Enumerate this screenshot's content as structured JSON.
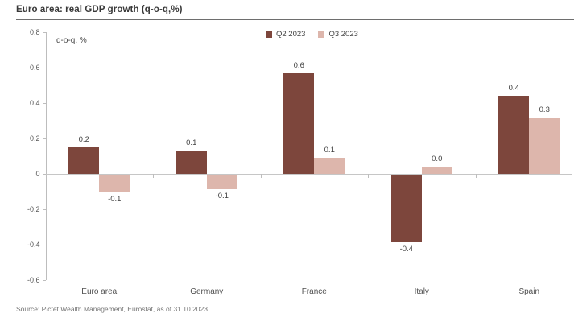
{
  "title": "Euro area: real GDP growth (q-o-q,%)",
  "source": "Source: Pictet Wealth Management, Eurostat, as of 31.10.2023",
  "colors": {
    "q2_series": "#7d463c",
    "q3_series": "#ddb6ac",
    "axis_line": "#bdbdbd",
    "title_rule": "#6e6e6e"
  },
  "chart_data": {
    "type": "bar",
    "title": "Euro area: real GDP growth (q-o-q,%)",
    "axis_note": "q-o-q, %",
    "xlabel": "",
    "ylabel": "q-o-q, %",
    "categories": [
      "Euro area",
      "Germany",
      "France",
      "Italy",
      "Spain"
    ],
    "series": [
      {
        "name": "Q2 2023",
        "color": "#7d463c",
        "values": [
          0.2,
          0.1,
          0.6,
          -0.4,
          0.4
        ],
        "labels": [
          "0.2",
          "0.1",
          "0.6",
          "-0.4",
          "0.4"
        ],
        "plotted": [
          0.15,
          0.13,
          0.57,
          -0.38,
          0.44
        ]
      },
      {
        "name": "Q3 2023",
        "color": "#ddb6ac",
        "values": [
          -0.1,
          -0.1,
          0.1,
          0.0,
          0.3
        ],
        "labels": [
          "-0.1",
          "-0.1",
          "0.1",
          "0.0",
          "0.3"
        ],
        "plotted": [
          -0.1,
          -0.08,
          0.09,
          0.04,
          0.32
        ]
      }
    ],
    "ylim": [
      -0.6,
      0.8
    ],
    "y_ticks": [
      0.8,
      0.6,
      0.4,
      0.2,
      0,
      -0.2,
      -0.4,
      -0.6
    ],
    "y_tick_labels": [
      "0.8",
      "0.6",
      "0.4",
      "0.2",
      "0",
      "-0.2",
      "-0.4",
      "-0.6"
    ],
    "grid": false,
    "legend_position": "top-center",
    "data_labels": true
  }
}
